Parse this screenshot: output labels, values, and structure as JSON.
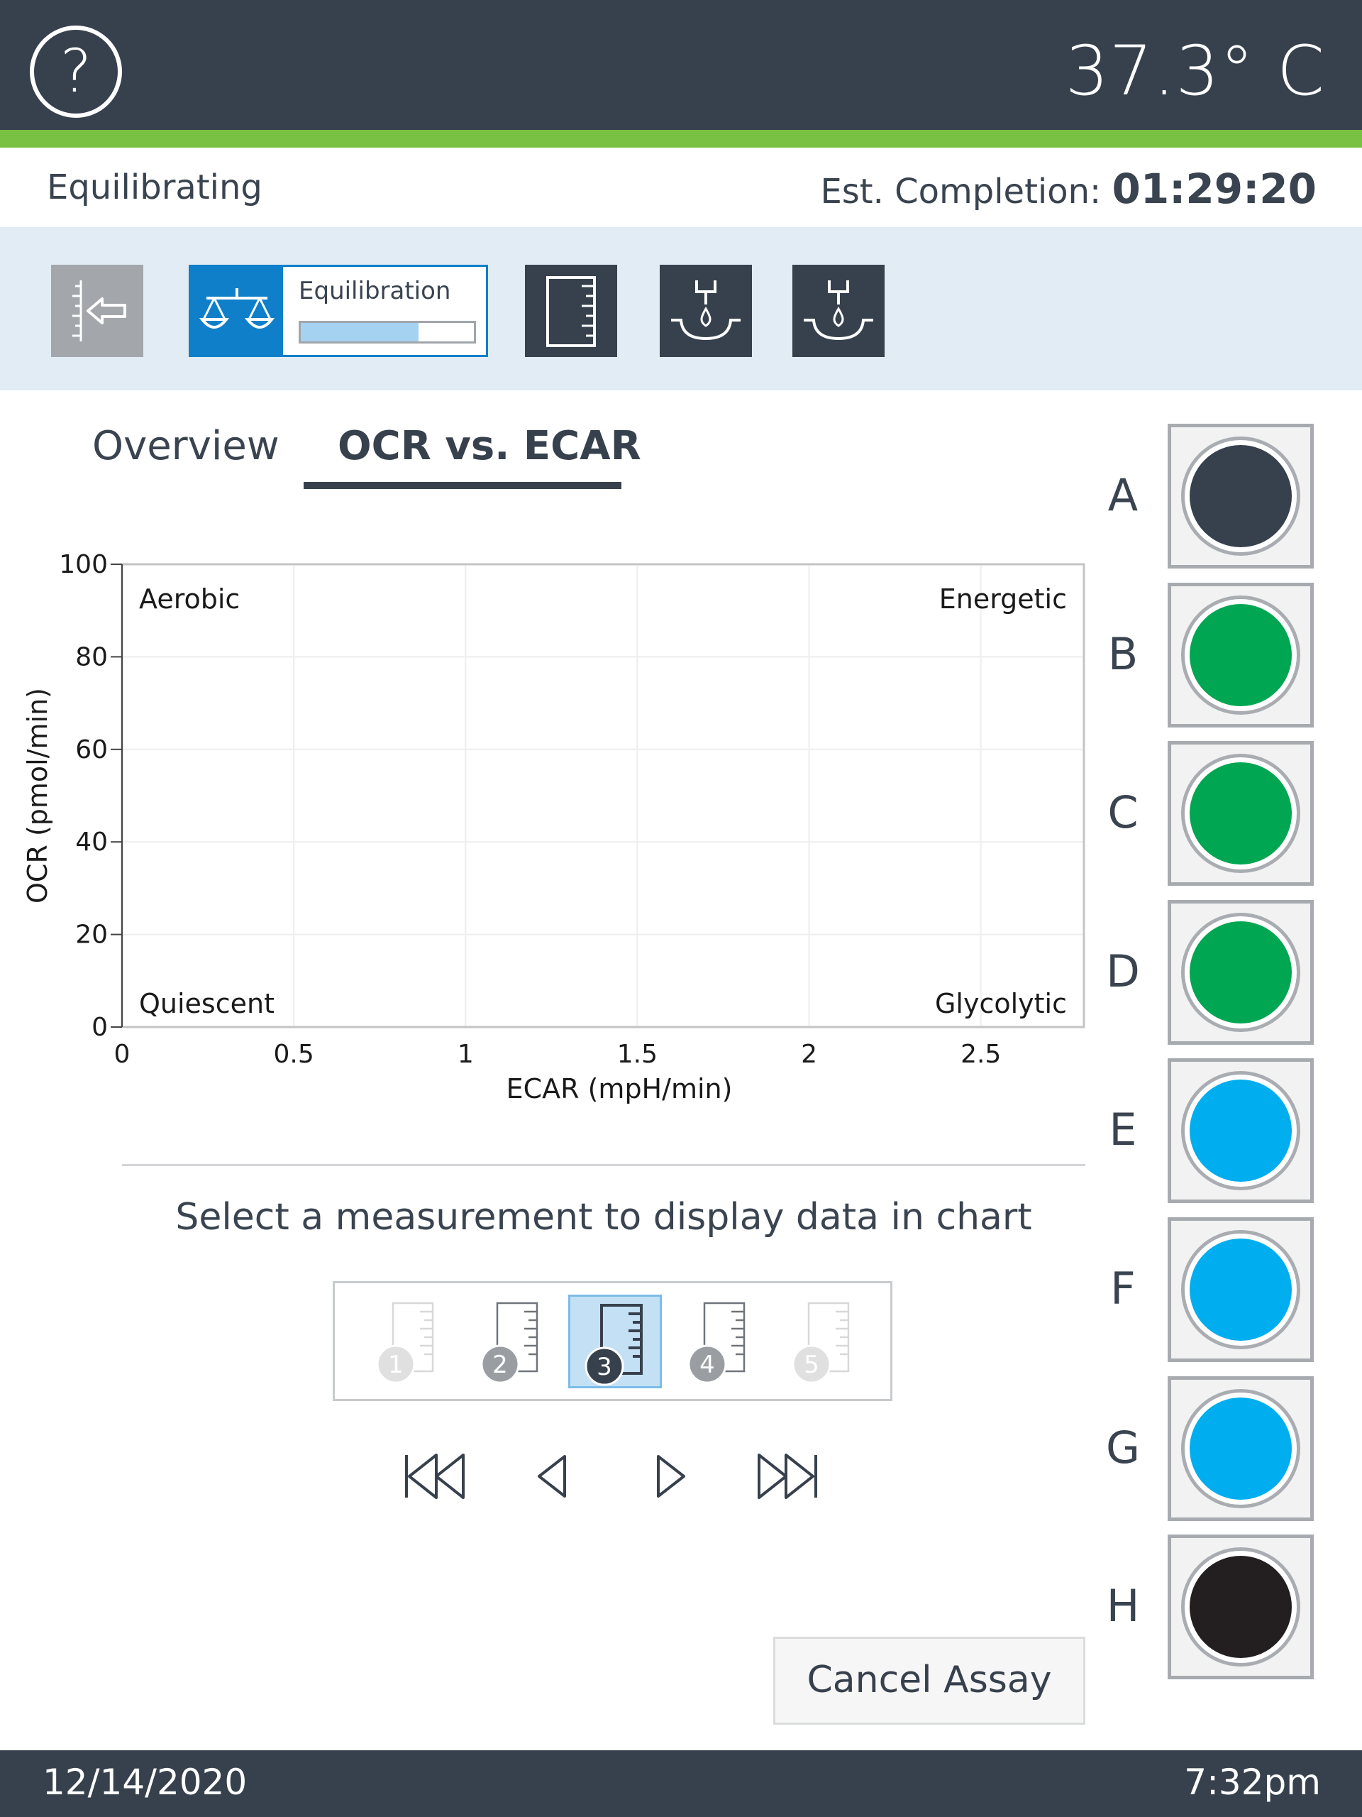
{
  "header": {
    "temperature": "37.3° C",
    "help_symbol": "?"
  },
  "status": {
    "state": "Equilibrating",
    "completion_label": "Est. Completion:",
    "completion_time": "01:29:20"
  },
  "steps": [
    {
      "name": "load-step",
      "icon": "load-icon",
      "state": "done"
    },
    {
      "name": "equilibration-step",
      "icon": "scale-icon",
      "label": "Equilibration",
      "progress": 0.68,
      "state": "active"
    },
    {
      "name": "measure-step",
      "icon": "ruler-icon",
      "state": "pending"
    },
    {
      "name": "inject-step-1",
      "icon": "inject-icon",
      "state": "pending"
    },
    {
      "name": "inject-step-2",
      "icon": "inject-icon",
      "state": "pending"
    }
  ],
  "tabs": {
    "overview": "Overview",
    "ocr_ecar": "OCR vs. ECAR",
    "active": "ocr_ecar"
  },
  "chart_data": {
    "type": "scatter",
    "xlabel": "ECAR (mpH/min)",
    "ylabel": "OCR (pmol/min)",
    "xlim": [
      0,
      2.8
    ],
    "ylim": [
      0,
      100
    ],
    "xticks": [
      0,
      0.5,
      1,
      1.5,
      2,
      2.5
    ],
    "xtick_labels": [
      "0",
      "0.5",
      "1",
      "1.5",
      "2",
      "2.5"
    ],
    "yticks": [
      0,
      20,
      40,
      60,
      80,
      100
    ],
    "ytick_labels": [
      "0",
      "20",
      "40",
      "60",
      "80",
      "100"
    ],
    "grid": true,
    "series": [],
    "quadrants": {
      "top_left": "Aerobic",
      "top_right": "Energetic",
      "bottom_left": "Quiescent",
      "bottom_right": "Glycolytic"
    }
  },
  "measurements": {
    "prompt": "Select a measurement to display data in chart",
    "items": [
      {
        "label": "1",
        "state": "disabled"
      },
      {
        "label": "2",
        "state": "available"
      },
      {
        "label": "3",
        "state": "selected"
      },
      {
        "label": "4",
        "state": "available"
      },
      {
        "label": "5",
        "state": "disabled"
      }
    ]
  },
  "navigation": {
    "first": "skip-first-icon",
    "prev": "prev-icon",
    "next": "next-icon",
    "last": "skip-last-icon"
  },
  "cancel_label": "Cancel Assay",
  "wells": [
    {
      "row": "A",
      "color": "#37414d"
    },
    {
      "row": "B",
      "color": "#00a651"
    },
    {
      "row": "C",
      "color": "#00a651"
    },
    {
      "row": "D",
      "color": "#00a651"
    },
    {
      "row": "E",
      "color": "#00aeef"
    },
    {
      "row": "F",
      "color": "#00aeef"
    },
    {
      "row": "G",
      "color": "#00aeef"
    },
    {
      "row": "H",
      "color": "#231f20"
    }
  ],
  "footer": {
    "date": "12/14/2020",
    "time": "7:32pm"
  }
}
